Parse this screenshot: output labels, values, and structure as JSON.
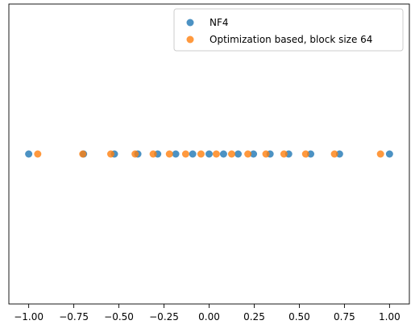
{
  "chart_data": {
    "type": "scatter",
    "title": "",
    "xlabel": "",
    "ylabel": "",
    "xlim": [
      -1.11,
      1.11
    ],
    "ylim": [
      -1,
      1
    ],
    "y_axis_visible": false,
    "grid": false,
    "legend_position": "top-right",
    "x_ticks": [
      "-1.00",
      "-0.75",
      "-0.50",
      "-0.25",
      "0.00",
      "0.25",
      "0.50",
      "0.75",
      "1.00"
    ],
    "x_tick_values": [
      -1.0,
      -0.75,
      -0.5,
      -0.25,
      0.0,
      0.25,
      0.5,
      0.75,
      1.0
    ],
    "series": [
      {
        "name": "NF4",
        "color": "#1f77b4",
        "y": 0,
        "x": [
          -1.0,
          -0.696,
          -0.525,
          -0.395,
          -0.285,
          -0.185,
          -0.091,
          0.0,
          0.08,
          0.161,
          0.246,
          0.338,
          0.441,
          0.563,
          0.723,
          1.0
        ]
      },
      {
        "name": "Optimization based, block size 64",
        "color": "#ff7f0e",
        "y": 0,
        "x": [
          -0.95,
          -0.7,
          -0.545,
          -0.41,
          -0.31,
          -0.22,
          -0.13,
          -0.045,
          0.04,
          0.125,
          0.215,
          0.315,
          0.415,
          0.535,
          0.695,
          0.95
        ]
      }
    ]
  }
}
